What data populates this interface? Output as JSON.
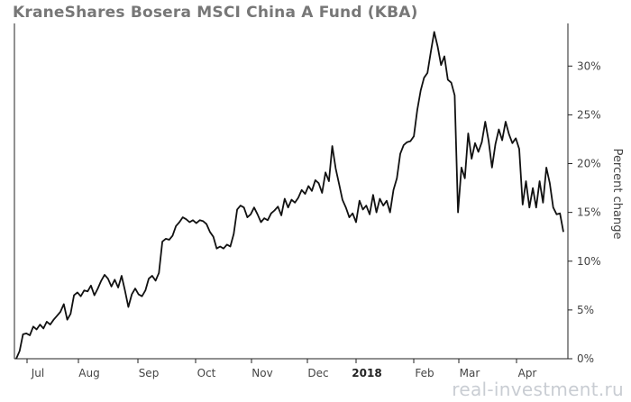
{
  "title": "KraneShares Bosera MSCI China A Fund (KBA)",
  "watermark": "real-investment.ru",
  "chart_data": {
    "type": "line",
    "title": "KraneShares Bosera MSCI China A Fund (KBA)",
    "xlabel": "",
    "ylabel": "Percent change",
    "ylim": [
      0,
      34
    ],
    "grid": false,
    "x_ticks": [
      "Jul",
      "Aug",
      "Sep",
      "Oct",
      "Nov",
      "Dec",
      "2018",
      "Feb",
      "Mar",
      "Apr"
    ],
    "y_ticks": [
      "0%",
      "5%",
      "10%",
      "15%",
      "20%",
      "25%",
      "30%"
    ],
    "y_tick_values": [
      0,
      5,
      10,
      15,
      20,
      25,
      30
    ],
    "series": [
      {
        "values": [
          0.0,
          0.8,
          2.5,
          2.6,
          2.4,
          3.3,
          3.0,
          3.5,
          3.1,
          3.8,
          3.5,
          4.0,
          4.4,
          4.8,
          5.6,
          4.0,
          4.6,
          6.5,
          6.8,
          6.4,
          7.0,
          6.9,
          7.5,
          6.5,
          7.2,
          8.0,
          8.6,
          8.2,
          7.4,
          8.1,
          7.3,
          8.5,
          7.0,
          5.3,
          6.6,
          7.2,
          6.6,
          6.4,
          7.0,
          8.2,
          8.5,
          8.0,
          8.8,
          12.0,
          12.3,
          12.2,
          12.6,
          13.6,
          14.0,
          14.5,
          14.3,
          14.0,
          14.2,
          13.9,
          14.2,
          14.1,
          13.8,
          13.0,
          12.5,
          11.3,
          11.5,
          11.3,
          11.7,
          11.5,
          12.8,
          15.3,
          15.7,
          15.5,
          14.5,
          14.8,
          15.5,
          14.8,
          14.0,
          14.4,
          14.2,
          14.9,
          15.2,
          15.6,
          14.7,
          16.4,
          15.5,
          16.3,
          16.0,
          16.5,
          17.3,
          16.9,
          17.7,
          17.2,
          18.3,
          18.0,
          17.0,
          19.1,
          18.2,
          21.8,
          19.5,
          17.9,
          16.3,
          15.5,
          14.5,
          14.9,
          14.0,
          16.2,
          15.3,
          15.7,
          14.8,
          16.8,
          15.0,
          16.4,
          15.7,
          16.2,
          15.0,
          17.3,
          18.5,
          21.0,
          21.9,
          22.2,
          22.3,
          22.8,
          25.5,
          27.5,
          28.8,
          29.3,
          31.5,
          33.5,
          32.0,
          30.1,
          31.0,
          28.6,
          28.3,
          27.0,
          15.0,
          19.6,
          18.5,
          23.1,
          20.5,
          22.1,
          21.2,
          22.2,
          24.3,
          22.3,
          19.6,
          22.0,
          23.5,
          22.4,
          24.3,
          23.0,
          22.1,
          22.6,
          21.5,
          15.8,
          18.2,
          15.5,
          17.5,
          15.5,
          18.2,
          16.0,
          19.6,
          18.0,
          15.5,
          14.8,
          14.9,
          13.0
        ]
      }
    ]
  }
}
